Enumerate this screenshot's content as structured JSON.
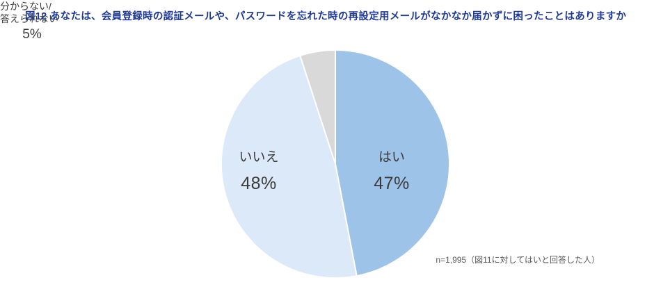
{
  "chart_data": {
    "type": "pie",
    "title": "図12  あなたは、会員登録時の認証メールや、パスワードを忘れた時の再設定用メールがなかなか届かずに困ったことはありますか",
    "categories": [
      "はい",
      "いいえ",
      "分からない/答えられない"
    ],
    "values": [
      47,
      48,
      5
    ],
    "unit": "%",
    "value_labels": [
      "47%",
      "48%",
      "5%"
    ],
    "unknown_label_lines": [
      "分からない/",
      "答えられない"
    ],
    "slice_names": [
      "yes",
      "no",
      "unknown"
    ],
    "colors": [
      "#9dc3e9",
      "#dce9f8",
      "#d9d9d9"
    ],
    "start_angle": "top",
    "direction": "clockwise",
    "legend": "none",
    "title_color": "#1e3a96",
    "footnote": "n=1,995（図11に対してはいと回答した人）"
  }
}
